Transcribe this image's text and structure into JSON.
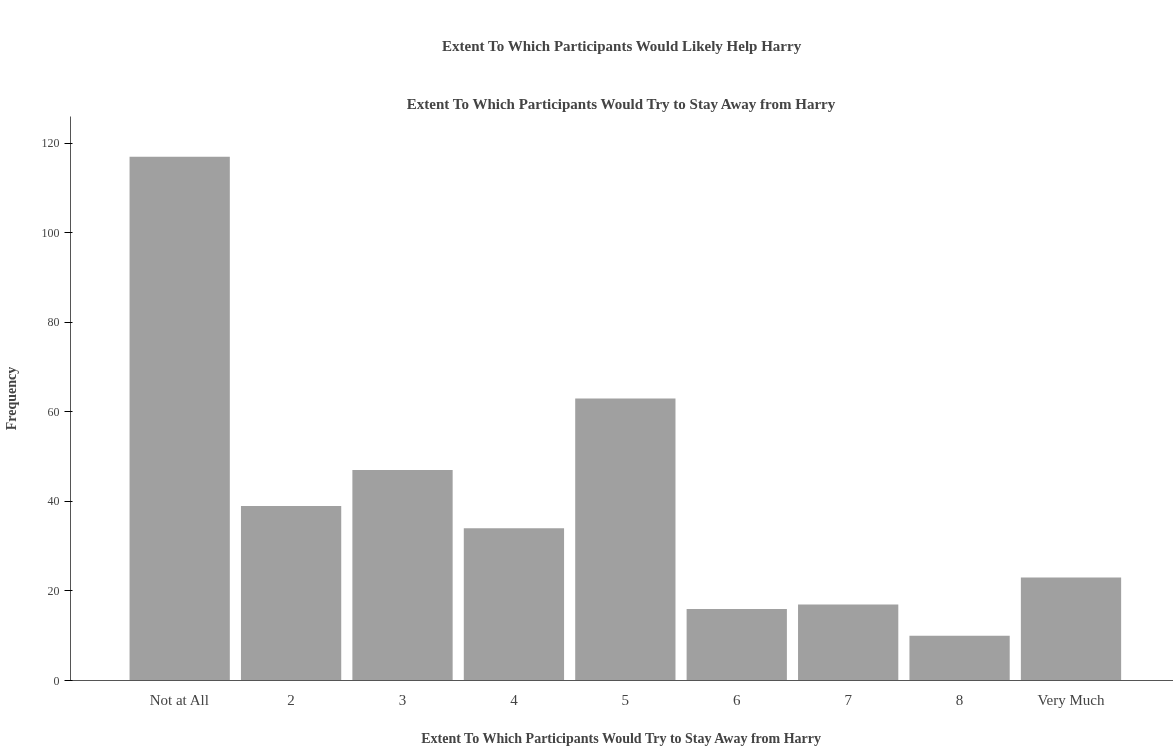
{
  "chart_data": {
    "type": "bar",
    "title": "Extent To Which Participants Would Likely Help Harry",
    "subtitle": "Extent To Which Participants Would Try to Stay Away from Harry",
    "xlabel": "Extent To Which Participants Would Try to Stay Away from Harry",
    "ylabel": "Frequency",
    "categories": [
      "Not at All",
      "2",
      "3",
      "4",
      "5",
      "6",
      "7",
      "8",
      "Very Much"
    ],
    "values": [
      117,
      39,
      47,
      34,
      63,
      16,
      17,
      10,
      23
    ],
    "color": "#a0a0a0",
    "ylim": [
      0,
      126
    ],
    "yticks": [
      0,
      20,
      40,
      60,
      80,
      100,
      120
    ],
    "grid": false
  }
}
